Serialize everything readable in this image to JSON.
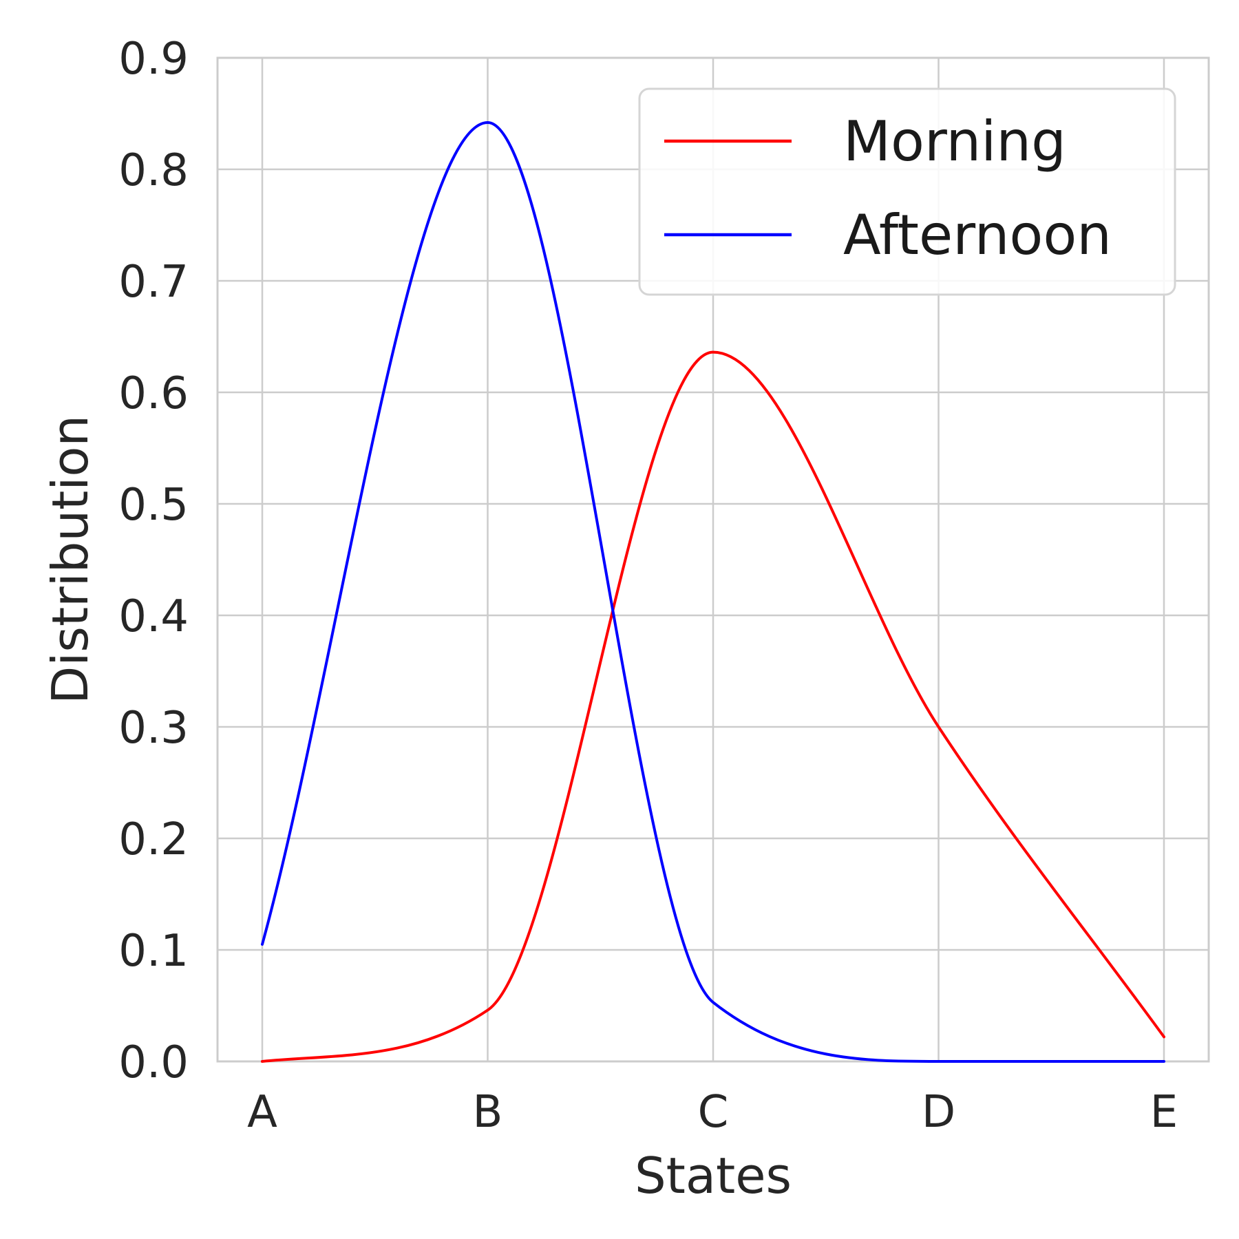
{
  "chart_data": {
    "type": "line",
    "xlabel": "States",
    "ylabel": "Distribution",
    "categories": [
      "A",
      "B",
      "C",
      "D",
      "E"
    ],
    "ylim": [
      0,
      0.9
    ],
    "yticks": [
      "0.0",
      "0.1",
      "0.2",
      "0.3",
      "0.4",
      "0.5",
      "0.6",
      "0.7",
      "0.8",
      "0.9"
    ],
    "grid": true,
    "legend_position": "top-right",
    "series": [
      {
        "name": "Morning",
        "color": "#ff0000",
        "values": [
          0.0,
          0.046,
          0.636,
          0.3,
          0.022
        ]
      },
      {
        "name": "Afternoon",
        "color": "#0000ff",
        "values": [
          0.105,
          0.842,
          0.053,
          0.0,
          0.0
        ]
      }
    ]
  }
}
